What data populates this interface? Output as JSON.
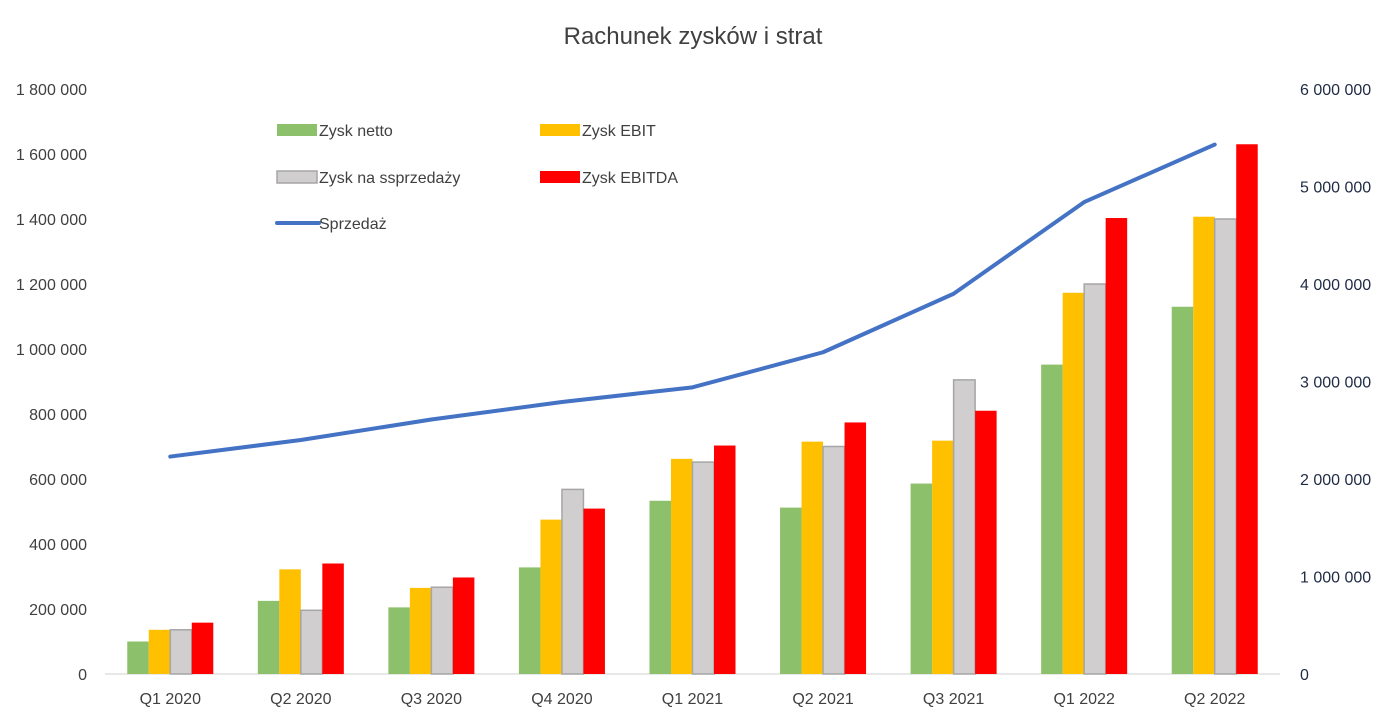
{
  "chart_data": {
    "type": "bar",
    "title": "Rachunek zysków i strat",
    "categories": [
      "Q1 2020",
      "Q2 2020",
      "Q3 2020",
      "Q4 2020",
      "Q1 2021",
      "Q2 2021",
      "Q3 2021",
      "Q1 2022",
      "Q2 2022"
    ],
    "ylim": [
      0,
      1800000
    ],
    "y2lim": [
      0,
      6000000
    ],
    "y_ticks": [
      {
        "value": 0,
        "label": "0"
      },
      {
        "value": 200000,
        "label": "200 000"
      },
      {
        "value": 400000,
        "label": "400 000"
      },
      {
        "value": 600000,
        "label": "600 000"
      },
      {
        "value": 800000,
        "label": "800 000"
      },
      {
        "value": 1000000,
        "label": "1 000 000"
      },
      {
        "value": 1200000,
        "label": "1 200 000"
      },
      {
        "value": 1400000,
        "label": "1 400 000"
      },
      {
        "value": 1600000,
        "label": "1 600 000"
      },
      {
        "value": 1800000,
        "label": "1 800 000"
      }
    ],
    "y2_ticks": [
      {
        "value": 0,
        "label": "0"
      },
      {
        "value": 1000000,
        "label": "1 000 000"
      },
      {
        "value": 2000000,
        "label": "2 000 000"
      },
      {
        "value": 3000000,
        "label": "3 000 000"
      },
      {
        "value": 4000000,
        "label": "4 000 000"
      },
      {
        "value": 5000000,
        "label": "5 000 000"
      },
      {
        "value": 6000000,
        "label": "6 000 000"
      }
    ],
    "grid": false,
    "legend_position": "top-left",
    "bar_series": [
      {
        "name": "Zysk netto",
        "color": "#8dc06a",
        "values": [
          100000,
          225000,
          205000,
          328000,
          533000,
          512000,
          586000,
          952000,
          1130000
        ]
      },
      {
        "name": "Zysk EBIT",
        "color": "#ffc000",
        "values": [
          136000,
          322000,
          265000,
          475000,
          662000,
          715000,
          718000,
          1173000,
          1407000
        ]
      },
      {
        "name": "Zysk na ssprzedaży",
        "color": "#d0cece",
        "stroke": "#a6a6a6",
        "values": [
          136000,
          196000,
          267000,
          568000,
          652000,
          700000,
          905000,
          1200000,
          1400000
        ]
      },
      {
        "name": "Zysk EBITDA",
        "color": "#ff0000",
        "values": [
          158000,
          340000,
          297000,
          509000,
          703000,
          774000,
          810000,
          1403000,
          1630000
        ]
      }
    ],
    "line_series": [
      {
        "name": "Sprzedaż",
        "color": "#4472c4",
        "axis": "right",
        "values": [
          2230000,
          2400000,
          2610000,
          2790000,
          2940000,
          3300000,
          3900000,
          4840000,
          5430000
        ]
      }
    ]
  }
}
